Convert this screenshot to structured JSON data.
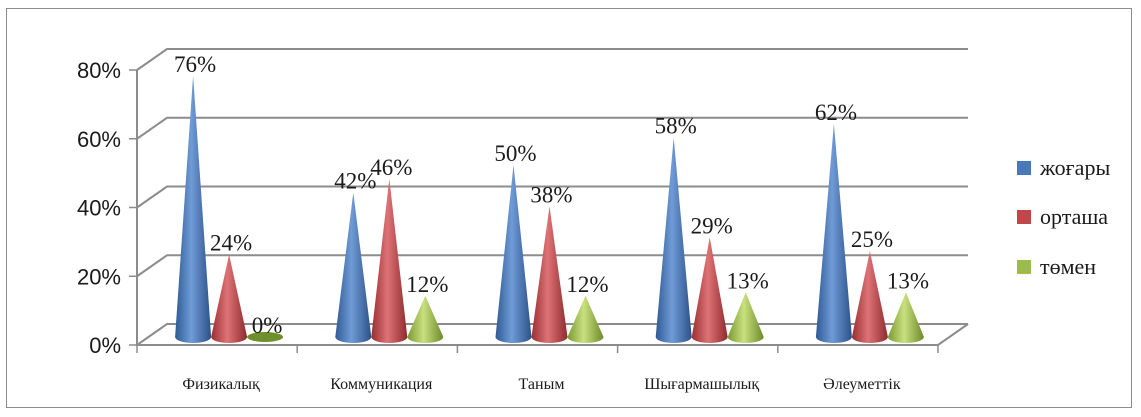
{
  "chart_data": {
    "type": "bar",
    "bar_shape": "cone-3d",
    "categories": [
      "Физикалық",
      "Коммуникация",
      "Таным",
      "Шығармашылық",
      "Әлеуметтік"
    ],
    "series": [
      {
        "name": "жоғары",
        "color": "#4a78b8",
        "values": [
          76,
          42,
          50,
          58,
          62
        ],
        "labels": [
          "76%",
          "42%",
          "50%",
          "58%",
          "62%"
        ]
      },
      {
        "name": "орташа",
        "color": "#c0464a",
        "values": [
          24,
          46,
          38,
          29,
          25
        ],
        "labels": [
          "24%",
          "46%",
          "38%",
          "29%",
          "25%"
        ]
      },
      {
        "name": "төмен",
        "color": "#9bbb4c",
        "values": [
          0,
          12,
          12,
          13,
          13
        ],
        "labels": [
          "0%",
          "12%",
          "12%",
          "13%",
          "13%"
        ]
      }
    ],
    "yticks": [
      "0%",
      "20%",
      "40%",
      "60%",
      "80%"
    ],
    "ytick_values": [
      0,
      20,
      40,
      60,
      80
    ],
    "ylim": [
      0,
      80
    ],
    "grid": true,
    "legend_position": "right"
  }
}
